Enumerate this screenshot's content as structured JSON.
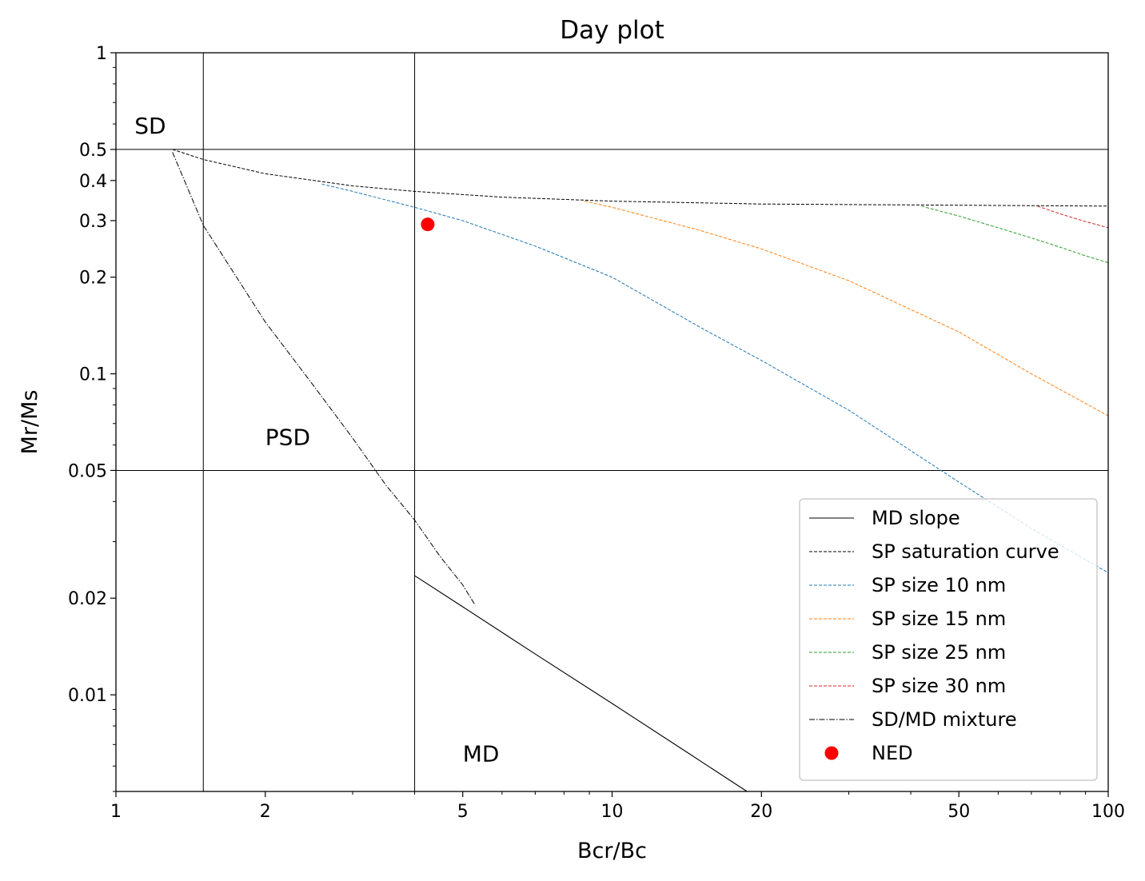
{
  "chart_data": {
    "type": "scatter",
    "title": "Day plot",
    "xlabel": "Bcr/Bc",
    "ylabel": "Mr/Ms",
    "xscale": "log",
    "yscale": "log",
    "xlim": [
      1,
      100
    ],
    "ylim": [
      0.005,
      1
    ],
    "xticks": [
      {
        "value": 1,
        "label": "1"
      },
      {
        "value": 2,
        "label": "2"
      },
      {
        "value": 5,
        "label": "5"
      },
      {
        "value": 10,
        "label": "10"
      },
      {
        "value": 20,
        "label": "20"
      },
      {
        "value": 50,
        "label": "50"
      },
      {
        "value": 100,
        "label": "100"
      }
    ],
    "yticks": [
      {
        "value": 0.01,
        "label": "0.01"
      },
      {
        "value": 0.02,
        "label": "0.02"
      },
      {
        "value": 0.05,
        "label": "0.05"
      },
      {
        "value": 0.1,
        "label": "0.1"
      },
      {
        "value": 0.2,
        "label": "0.2"
      },
      {
        "value": 0.3,
        "label": "0.3"
      },
      {
        "value": 0.4,
        "label": "0.4"
      },
      {
        "value": 0.5,
        "label": "0.5"
      },
      {
        "value": 1,
        "label": "1"
      }
    ],
    "grid": false,
    "region_boundaries": {
      "x": [
        1.5,
        4.0
      ],
      "y": [
        0.5,
        0.05
      ]
    },
    "region_labels": [
      {
        "text": "SD",
        "x": 1.09,
        "y": 0.56
      },
      {
        "text": "PSD",
        "x": 2.0,
        "y": 0.06
      },
      {
        "text": "MD",
        "x": 5.0,
        "y": 0.0062
      }
    ],
    "series": [
      {
        "name": "MD slope",
        "style": "solid",
        "color": "#000000",
        "x": [
          4.0,
          5.0,
          7.0,
          10.0,
          14.0,
          18.7
        ],
        "y": [
          0.0235,
          0.0188,
          0.0134,
          0.0094,
          0.0067,
          0.005
        ]
      },
      {
        "name": "SP saturation curve",
        "style": "dashed",
        "color": "#000000",
        "x": [
          1.3,
          1.5,
          2.0,
          3.0,
          4.0,
          6.0,
          10.0,
          20.0,
          50.0,
          100.0
        ],
        "y": [
          0.5,
          0.465,
          0.42,
          0.385,
          0.37,
          0.355,
          0.345,
          0.338,
          0.335,
          0.333
        ]
      },
      {
        "name": "SP size 10 nm",
        "style": "dashed",
        "color": "#1f77b4",
        "x": [
          2.6,
          3.0,
          4.0,
          5.0,
          7.0,
          10.0,
          15.0,
          20.0,
          30.0,
          50.0,
          70.0,
          100.0
        ],
        "y": [
          0.39,
          0.37,
          0.33,
          0.3,
          0.25,
          0.2,
          0.14,
          0.11,
          0.077,
          0.046,
          0.033,
          0.024
        ]
      },
      {
        "name": "SP size 15 nm",
        "style": "dashed",
        "color": "#ff7f0e",
        "x": [
          8.8,
          10.0,
          15.0,
          20.0,
          30.0,
          50.0,
          70.0,
          100.0
        ],
        "y": [
          0.345,
          0.33,
          0.28,
          0.245,
          0.195,
          0.135,
          0.1,
          0.074
        ]
      },
      {
        "name": "SP size 25 nm",
        "style": "dashed",
        "color": "#2ca02c",
        "x": [
          42.0,
          50.0,
          60.0,
          70.0,
          80.0,
          90.0,
          100.0
        ],
        "y": [
          0.333,
          0.31,
          0.285,
          0.265,
          0.248,
          0.233,
          0.222
        ]
      },
      {
        "name": "SP size 30 nm",
        "style": "dashed",
        "color": "#d62728",
        "x": [
          72.0,
          80.0,
          90.0,
          100.0
        ],
        "y": [
          0.333,
          0.315,
          0.298,
          0.285
        ]
      },
      {
        "name": "SD/MD mixture",
        "style": "dashdot",
        "color": "#000000",
        "x": [
          1.3,
          1.5,
          2.0,
          2.5,
          3.0,
          3.5,
          4.0,
          4.5,
          5.0,
          5.3
        ],
        "y": [
          0.49,
          0.29,
          0.145,
          0.092,
          0.063,
          0.045,
          0.035,
          0.027,
          0.022,
          0.019
        ]
      },
      {
        "name": "NED",
        "style": "marker",
        "color": "#ff0000",
        "x": [
          4.25
        ],
        "y": [
          0.292
        ]
      }
    ],
    "legend": {
      "position": "lower-right"
    }
  }
}
